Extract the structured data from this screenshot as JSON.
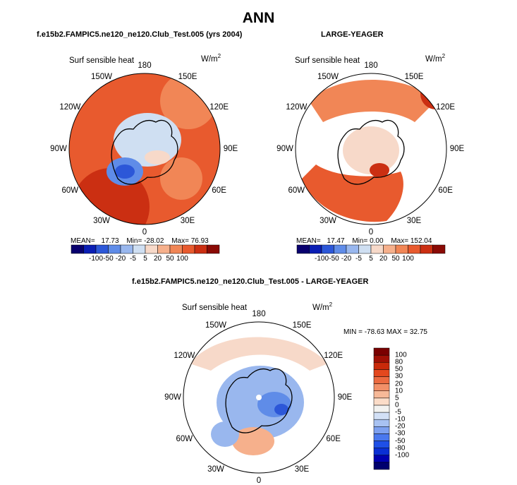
{
  "page_title": "ANN",
  "colors": {
    "scale_12": [
      "#08006e",
      "#0a1eb4",
      "#2c57d8",
      "#5f8ce8",
      "#99b7ee",
      "#cfdff2",
      "#f7d9c9",
      "#f6b08c",
      "#f18656",
      "#e85a2e",
      "#cb2f12",
      "#8a0a05"
    ],
    "scale_vertical": [
      "#00006e",
      "#0000b0",
      "#0a2fd4",
      "#1e4fe6",
      "#4a78ee",
      "#7da0f0",
      "#a8c2f2",
      "#d2e0f6",
      "#f2f2f0",
      "#fbdcc8",
      "#f7b998",
      "#f29068",
      "#ec6a40",
      "#e4481e",
      "#c92a0a",
      "#a01005",
      "#7a0000"
    ],
    "land_outline": "#000000"
  },
  "panels": [
    {
      "title": "f.e15b2.FAMPIC5.ne120_ne120.Club_Test.005 (yrs 2004)",
      "field_label": "Surf sensible heat",
      "units": "W/m",
      "units_sup": "2",
      "stats": {
        "mean_label": "MEAN=",
        "mean": "17.73",
        "min_label": "Min=",
        "min": "-28.02",
        "max_label": "Max=",
        "max": "76.93"
      },
      "colorbar_ticks": [
        "-100",
        "-50",
        "-20",
        "-5",
        "5",
        "20",
        "50",
        "100"
      ]
    },
    {
      "title": "LARGE-YEAGER",
      "field_label": "Surf sensible heat",
      "units": "W/m",
      "units_sup": "2",
      "stats": {
        "mean_label": "MEAN=",
        "mean": "17.47",
        "min_label": "Min=",
        "min": "0.00",
        "max_label": "Max=",
        "max": "152.04"
      },
      "colorbar_ticks": [
        "-100",
        "-50",
        "-20",
        "-5",
        "5",
        "20",
        "50",
        "100"
      ]
    },
    {
      "title": "f.e15b2.FAMPIC5.ne120_ne120.Club_Test.005 - LARGE-YEAGER",
      "field_label": "Surf sensible heat",
      "units": "W/m",
      "units_sup": "2",
      "minmax": "MIN = -78.63 MAX =  32.75",
      "colorbar_ticks": [
        "100",
        "80",
        "50",
        "30",
        "20",
        "10",
        "5",
        "0",
        "-5",
        "-10",
        "-20",
        "-30",
        "-50",
        "-80",
        "-100"
      ]
    }
  ],
  "lon_labels": [
    "180",
    "150E",
    "120E",
    "90E",
    "60E",
    "30E",
    "0",
    "30W",
    "60W",
    "90W",
    "120W",
    "150W"
  ],
  "chart_data": [
    {
      "type": "heatmap",
      "projection": "north-polar-stereographic",
      "title": "f.e15b2.FAMPIC5.ne120_ne120.Club_Test.005 (yrs 2004)",
      "variable": "Surf sensible heat",
      "units": "W/m2",
      "mean": 17.73,
      "min": -28.02,
      "max": 76.93,
      "contour_levels": [
        -100,
        -50,
        -20,
        -5,
        5,
        20,
        50,
        100
      ]
    },
    {
      "type": "heatmap",
      "projection": "north-polar-stereographic",
      "title": "LARGE-YEAGER",
      "variable": "Surf sensible heat",
      "units": "W/m2",
      "mean": 17.47,
      "min": 0.0,
      "max": 152.04,
      "contour_levels": [
        -100,
        -50,
        -20,
        -5,
        5,
        20,
        50,
        100
      ]
    },
    {
      "type": "heatmap",
      "projection": "north-polar-stereographic",
      "title": "f.e15b2.FAMPIC5.ne120_ne120.Club_Test.005 - LARGE-YEAGER",
      "variable": "Surf sensible heat",
      "units": "W/m2",
      "min": -78.63,
      "max": 32.75,
      "contour_levels": [
        -100,
        -80,
        -50,
        -30,
        -20,
        -10,
        -5,
        0,
        5,
        10,
        20,
        30,
        50,
        80,
        100
      ]
    }
  ]
}
